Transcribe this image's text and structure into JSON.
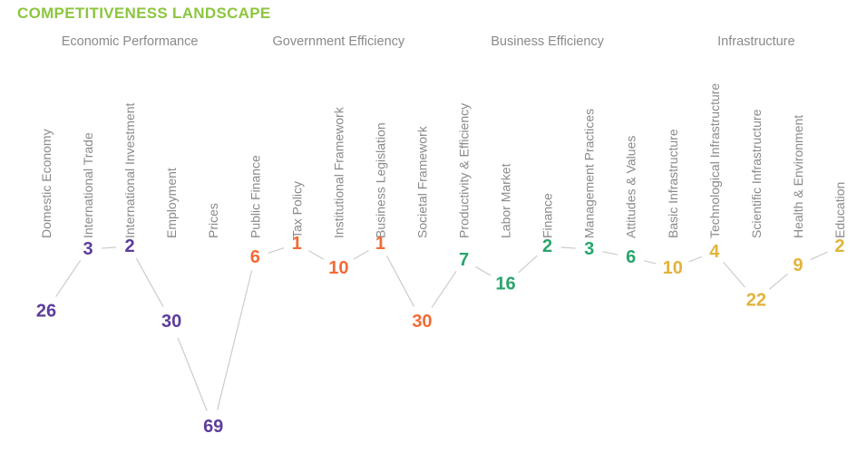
{
  "title": "COMPETITIVENESS LANDSCAPE",
  "styles": {
    "title_color": "#8CC63F",
    "text_color": "#8A8A8A",
    "line_color": "#CCCCCC",
    "background": "#FFFFFF",
    "group_colors": {
      "economic_performance": "#5C3D9B",
      "government_efficiency": "#F26B35",
      "business_efficiency": "#29A56B",
      "infrastructure": "#E2B33A"
    }
  },
  "chart_data": {
    "type": "line",
    "title": "COMPETITIVENESS LANDSCAPE",
    "xlabel": "",
    "ylabel": "",
    "y_axis": {
      "visible": false,
      "inverted": true,
      "min": 1,
      "max": 69
    },
    "grid": false,
    "legend": "none",
    "groups": [
      {
        "label": "Economic Performance",
        "color": "#5C3D9B",
        "items": [
          {
            "label": "Domestic Economy",
            "value": 26
          },
          {
            "label": "International Trade",
            "value": 3
          },
          {
            "label": "International Investment",
            "value": 2
          },
          {
            "label": "Employment",
            "value": 30
          },
          {
            "label": "Prices",
            "value": 69
          }
        ]
      },
      {
        "label": "Government Efficiency",
        "color": "#F26B35",
        "items": [
          {
            "label": "Public Finance",
            "value": 6
          },
          {
            "label": "Tax Policy",
            "value": 1
          },
          {
            "label": "Institutional Framework",
            "value": 10
          },
          {
            "label": "Business Legislation",
            "value": 1
          },
          {
            "label": "Societal Framework",
            "value": 30
          }
        ]
      },
      {
        "label": "Business Efficiency",
        "color": "#29A56B",
        "items": [
          {
            "label": "Productivity & Efficiency",
            "value": 7
          },
          {
            "label": "Labor Market",
            "value": 16
          },
          {
            "label": "Finance",
            "value": 2
          },
          {
            "label": "Management Practices",
            "value": 3
          },
          {
            "label": "Attitudes & Values",
            "value": 6
          }
        ]
      },
      {
        "label": "Infrastructure",
        "color": "#E2B33A",
        "items": [
          {
            "label": "Basic Infrastructure",
            "value": 10
          },
          {
            "label": "Technological Infrastructure",
            "value": 4
          },
          {
            "label": "Scientific Infrastructure",
            "value": 22
          },
          {
            "label": "Health & Environment",
            "value": 9
          },
          {
            "label": "Education",
            "value": 2
          }
        ]
      }
    ],
    "categories": [
      "Domestic Economy",
      "International Trade",
      "International Investment",
      "Employment",
      "Prices",
      "Public Finance",
      "Tax Policy",
      "Institutional Framework",
      "Business Legislation",
      "Societal Framework",
      "Productivity & Efficiency",
      "Labor Market",
      "Finance",
      "Management Practices",
      "Attitudes & Values",
      "Basic Infrastructure",
      "Technological Infrastructure",
      "Scientific Infrastructure",
      "Health & Environment",
      "Education"
    ],
    "values": [
      26,
      3,
      2,
      30,
      69,
      6,
      1,
      10,
      1,
      30,
      7,
      16,
      2,
      3,
      6,
      10,
      4,
      22,
      9,
      2
    ]
  }
}
